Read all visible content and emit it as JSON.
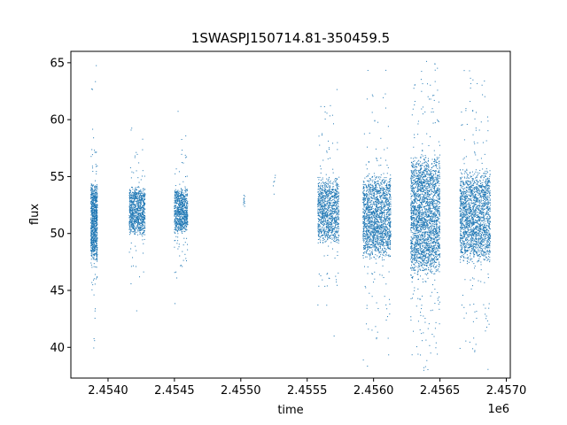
{
  "chart_data": {
    "type": "scatter",
    "title": "1SWASPJ150714.81-350459.5",
    "xlabel": "time",
    "ylabel": "flux",
    "x_offset_label": "1e6",
    "xlim": [
      2453720,
      2457030
    ],
    "ylim": [
      37.3,
      66.0
    ],
    "x_ticks": [
      2453500,
      2454000,
      2454500,
      2455000,
      2455500,
      2456000,
      2456500,
      2457000
    ],
    "x_tick_labels": [
      "",
      "2.4540",
      "2.4545",
      "2.4550",
      "2.4555",
      "2.4560",
      "2.4565",
      "2.4570"
    ],
    "y_ticks": [
      40,
      45,
      50,
      55,
      60,
      65
    ],
    "y_tick_labels": [
      "40",
      "45",
      "50",
      "55",
      "60",
      "65"
    ],
    "grid": false,
    "marker_color": "#1f77b4",
    "segments": [
      {
        "x_start": 2453870,
        "x_end": 2453920,
        "y_center": 51.0,
        "y_spread": 3.6,
        "n": 900
      },
      {
        "x_start": 2454160,
        "x_end": 2454280,
        "y_center": 52.0,
        "y_spread": 2.2,
        "n": 900
      },
      {
        "x_start": 2454500,
        "x_end": 2454600,
        "y_center": 52.0,
        "y_spread": 2.0,
        "n": 800
      },
      {
        "x_start": 2455020,
        "x_end": 2455030,
        "y_center": 52.8,
        "y_spread": 0.6,
        "n": 12
      },
      {
        "x_start": 2455240,
        "x_end": 2455260,
        "y_center": 54.5,
        "y_spread": 1.0,
        "n": 6
      },
      {
        "x_start": 2455580,
        "x_end": 2455740,
        "y_center": 52.0,
        "y_spread": 3.0,
        "n": 1100
      },
      {
        "x_start": 2455920,
        "x_end": 2456130,
        "y_center": 51.5,
        "y_spread": 3.8,
        "n": 1800
      },
      {
        "x_start": 2456280,
        "x_end": 2456500,
        "y_center": 51.5,
        "y_spread": 5.5,
        "n": 2600
      },
      {
        "x_start": 2456650,
        "x_end": 2456880,
        "y_center": 51.5,
        "y_spread": 4.2,
        "n": 2000
      }
    ]
  }
}
